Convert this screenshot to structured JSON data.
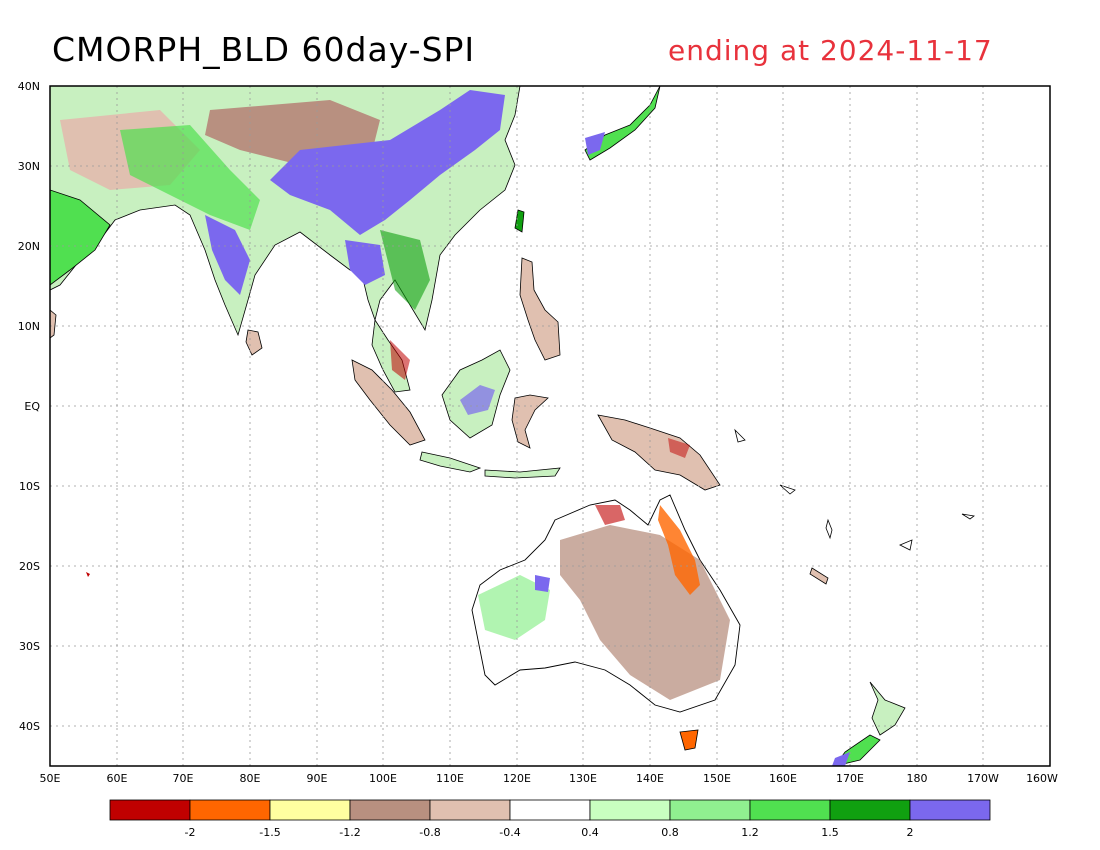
{
  "title": "CMORPH_BLD 60day-SPI",
  "date_label": "ending at 2024-11-17",
  "map": {
    "lon_range": [
      50,
      200
    ],
    "lat_range": [
      -45,
      40
    ],
    "lat_ticks": [
      "40N",
      "30N",
      "20N",
      "10N",
      "EQ",
      "10S",
      "20S",
      "30S",
      "40S"
    ],
    "lon_ticks": [
      "50E",
      "60E",
      "70E",
      "80E",
      "90E",
      "100E",
      "110E",
      "120E",
      "130E",
      "140E",
      "150E",
      "160E",
      "170E",
      "180",
      "170W",
      "160W"
    ],
    "grid": true
  },
  "colorbar": {
    "colors": [
      "#c00000",
      "#ff6600",
      "#ffffa0",
      "#b89080",
      "#e0c0b0",
      "#ffffff",
      "#c8ffc0",
      "#90f090",
      "#50e050",
      "#10a010",
      "#7b68ee"
    ],
    "tick_labels": [
      "-2",
      "-1.5",
      "-1.2",
      "-0.8",
      "-0.4",
      "0.4",
      "0.8",
      "1.2",
      "1.5",
      "2"
    ]
  }
}
